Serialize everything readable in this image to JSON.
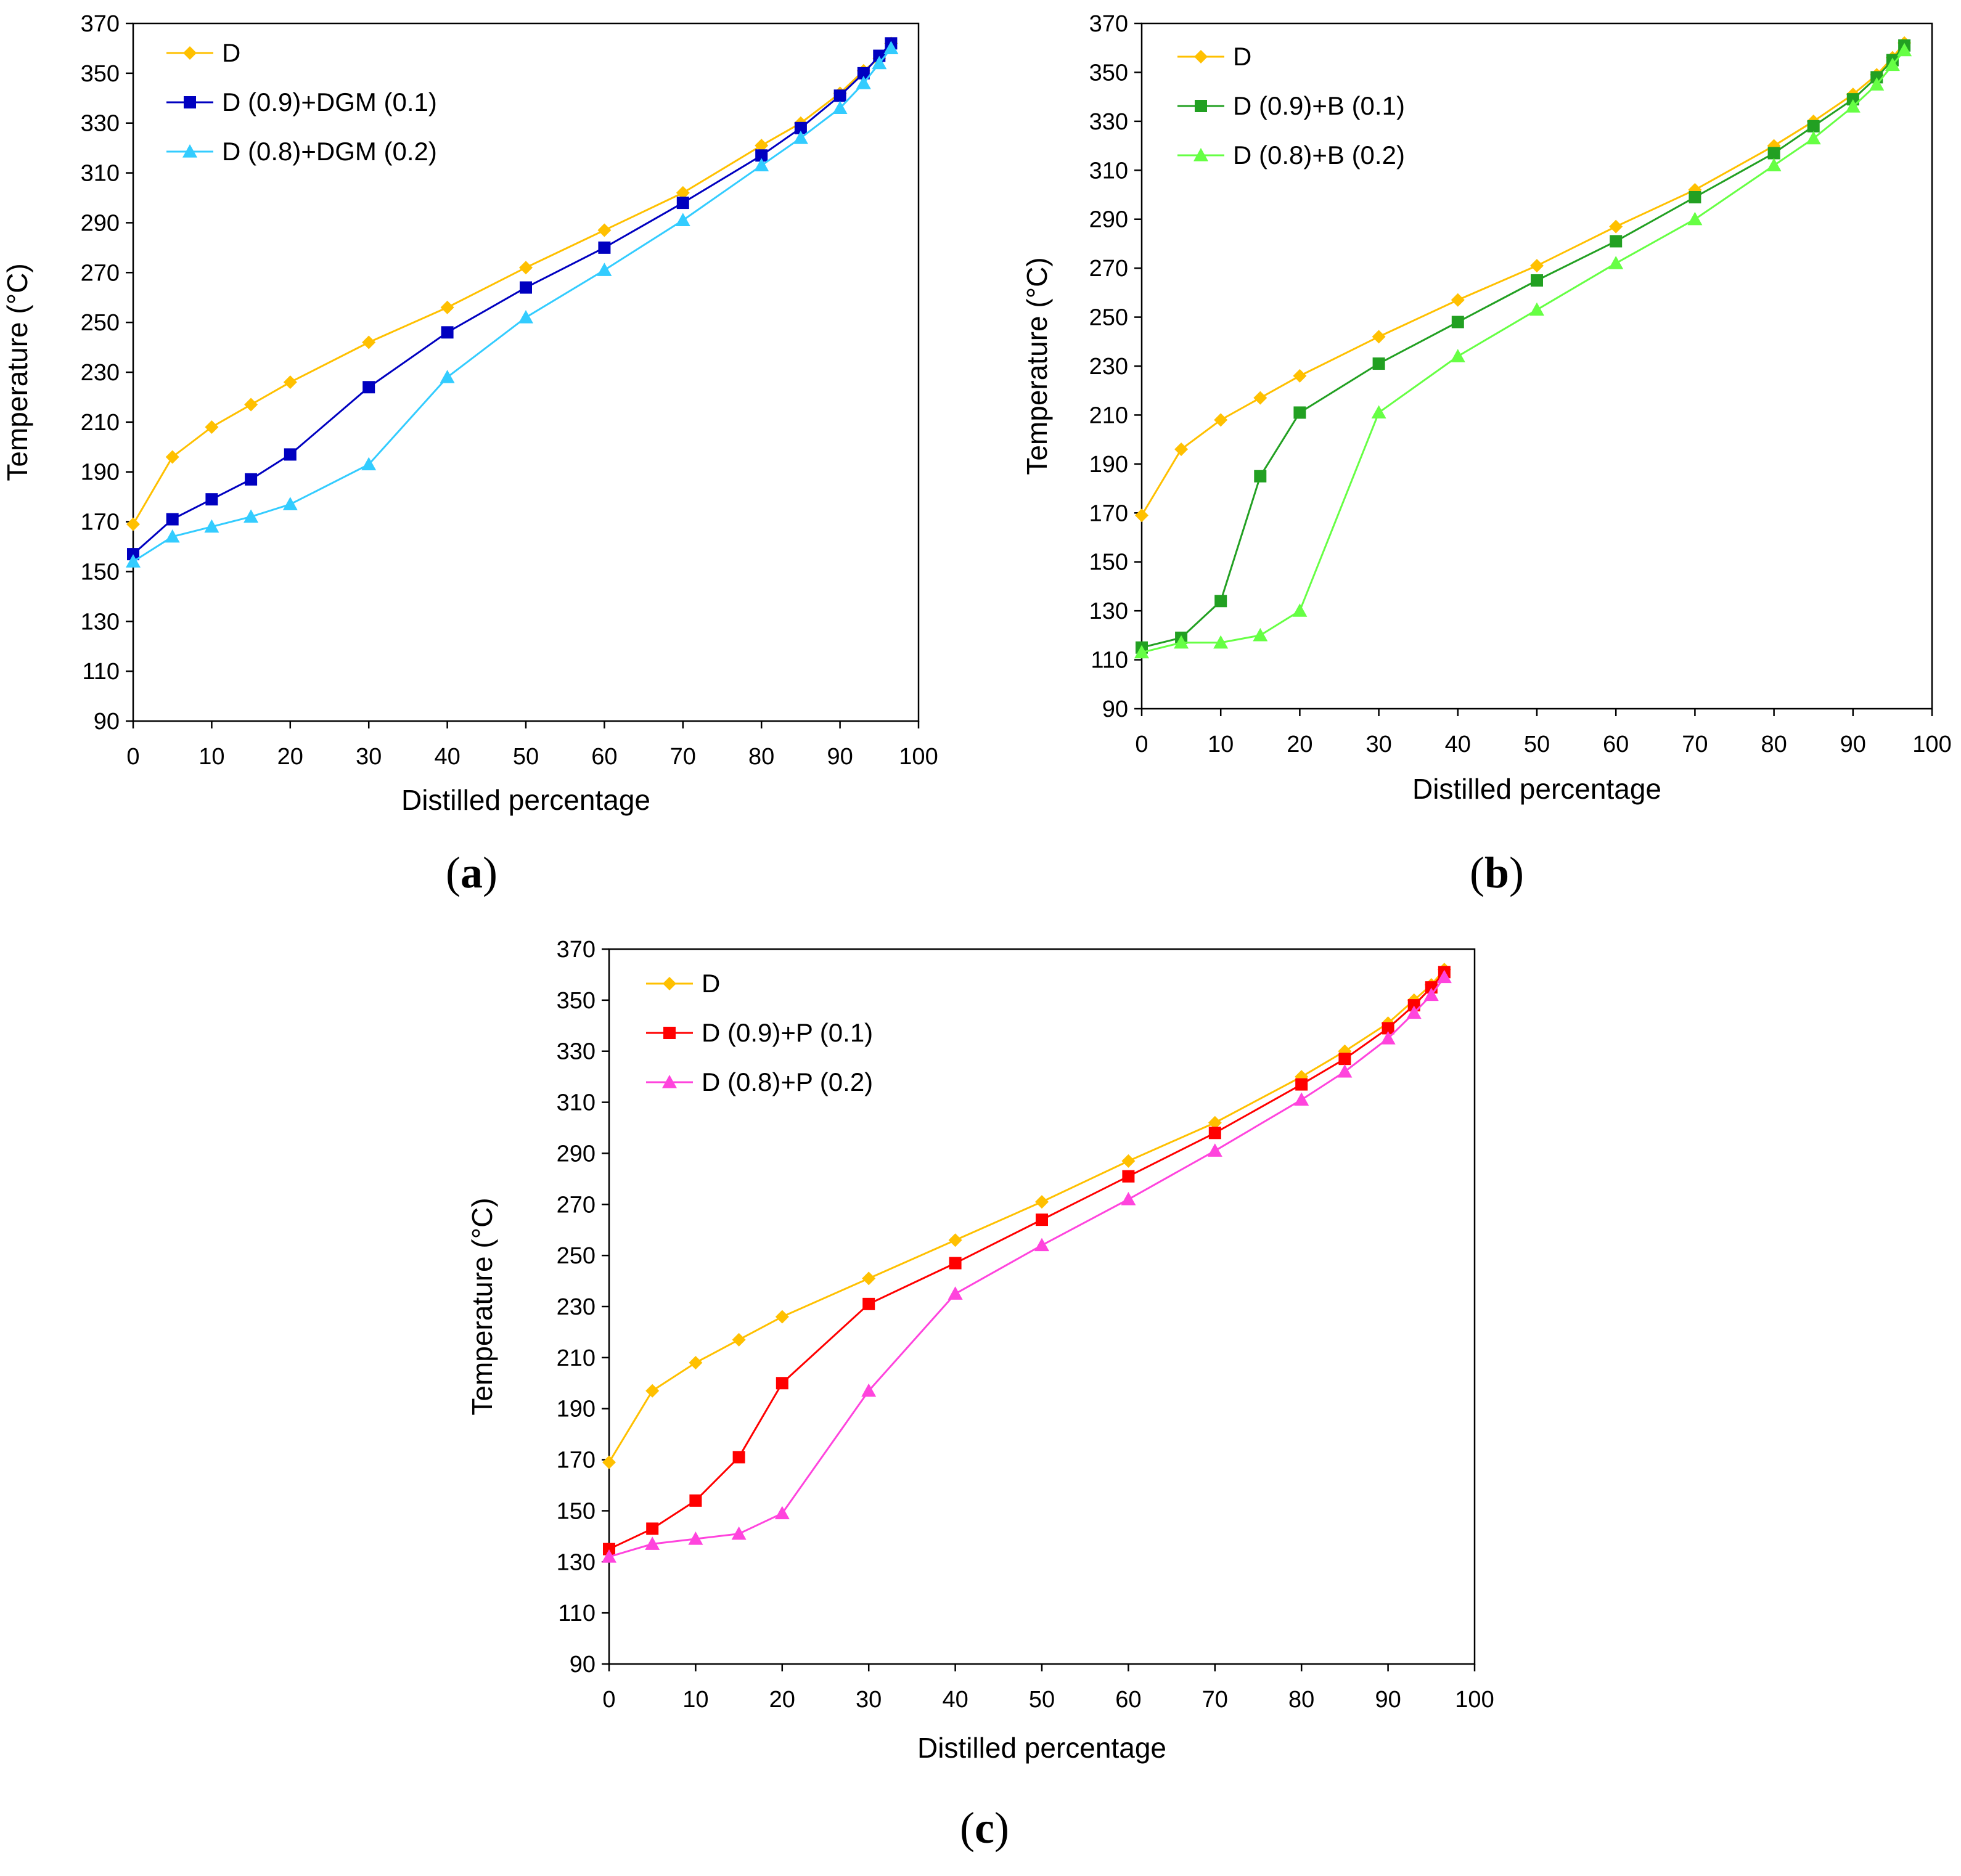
{
  "chart_data": [
    {
      "type": "line",
      "panel": "a",
      "caption_label": "a",
      "xlabel": "Distilled percentage",
      "ylabel": "Temperature (°C)",
      "xlim": [
        0,
        100
      ],
      "ylim": [
        90,
        370
      ],
      "xticks": [
        0,
        10,
        20,
        30,
        40,
        50,
        60,
        70,
        80,
        90,
        100
      ],
      "yticks": [
        90,
        110,
        130,
        150,
        170,
        190,
        210,
        230,
        250,
        270,
        290,
        310,
        330,
        350,
        370
      ],
      "legend_position": "top-left",
      "series": [
        {
          "name": "D",
          "color": "#FFC000",
          "marker": "diamond",
          "x": [
            0,
            5,
            10,
            15,
            20,
            30,
            40,
            50,
            60,
            70,
            80,
            85,
            90,
            93,
            95,
            96.5
          ],
          "y": [
            169,
            196,
            208,
            217,
            226,
            242,
            256,
            272,
            287,
            302,
            321,
            330,
            342,
            351,
            356,
            362
          ]
        },
        {
          "name": "D (0.9)+DGM (0.1)",
          "color": "#0000C0",
          "marker": "square",
          "x": [
            0,
            5,
            10,
            15,
            20,
            30,
            40,
            50,
            60,
            70,
            80,
            85,
            90,
            93,
            95,
            96.5
          ],
          "y": [
            157,
            171,
            179,
            187,
            197,
            224,
            246,
            264,
            280,
            298,
            317,
            328,
            341,
            350,
            357,
            362
          ]
        },
        {
          "name": "D (0.8)+DGM (0.2)",
          "color": "#33CCFF",
          "marker": "triangle",
          "x": [
            0,
            5,
            10,
            15,
            20,
            30,
            40,
            50,
            60,
            70,
            80,
            85,
            90,
            93,
            95,
            96.5
          ],
          "y": [
            154,
            164,
            168,
            172,
            177,
            193,
            228,
            252,
            271,
            291,
            313,
            324,
            336,
            346,
            354,
            360
          ]
        }
      ]
    },
    {
      "type": "line",
      "panel": "b",
      "caption_label": "b",
      "xlabel": "Distilled percentage",
      "ylabel": "Temperature (°C)",
      "xlim": [
        0,
        100
      ],
      "ylim": [
        90,
        370
      ],
      "xticks": [
        0,
        10,
        20,
        30,
        40,
        50,
        60,
        70,
        80,
        90,
        100
      ],
      "yticks": [
        90,
        110,
        130,
        150,
        170,
        190,
        210,
        230,
        250,
        270,
        290,
        310,
        330,
        350,
        370
      ],
      "legend_position": "top-left",
      "series": [
        {
          "name": "D",
          "color": "#FFC000",
          "marker": "diamond",
          "x": [
            0,
            5,
            10,
            15,
            20,
            30,
            40,
            50,
            60,
            70,
            80,
            85,
            90,
            93,
            95,
            96.5
          ],
          "y": [
            169,
            196,
            208,
            217,
            226,
            242,
            257,
            271,
            287,
            302,
            320,
            330,
            341,
            349,
            356,
            362
          ]
        },
        {
          "name": "D (0.9)+B (0.1)",
          "color": "#22A022",
          "marker": "square",
          "x": [
            0,
            5,
            10,
            15,
            20,
            30,
            40,
            50,
            60,
            70,
            80,
            85,
            90,
            93,
            95,
            96.5
          ],
          "y": [
            115,
            119,
            134,
            185,
            211,
            231,
            248,
            265,
            281,
            299,
            317,
            328,
            339,
            348,
            355,
            361
          ]
        },
        {
          "name": "D (0.8)+B (0.2)",
          "color": "#66FF44",
          "marker": "triangle",
          "x": [
            0,
            5,
            10,
            15,
            20,
            30,
            40,
            50,
            60,
            70,
            80,
            85,
            90,
            93,
            95,
            96.5
          ],
          "y": [
            113,
            117,
            117,
            120,
            130,
            211,
            234,
            253,
            272,
            290,
            312,
            323,
            336,
            345,
            353,
            359
          ]
        }
      ]
    },
    {
      "type": "line",
      "panel": "c",
      "caption_label": "c",
      "xlabel": "Distilled percentage",
      "ylabel": "Temperature (°C)",
      "xlim": [
        0,
        100
      ],
      "ylim": [
        90,
        370
      ],
      "xticks": [
        0,
        10,
        20,
        30,
        40,
        50,
        60,
        70,
        80,
        90,
        100
      ],
      "yticks": [
        90,
        110,
        130,
        150,
        170,
        190,
        210,
        230,
        250,
        270,
        290,
        310,
        330,
        350,
        370
      ],
      "legend_position": "top-left",
      "series": [
        {
          "name": "D",
          "color": "#FFC000",
          "marker": "diamond",
          "x": [
            0,
            5,
            10,
            15,
            20,
            30,
            40,
            50,
            60,
            70,
            80,
            85,
            90,
            93,
            95,
            96.5
          ],
          "y": [
            169,
            197,
            208,
            217,
            226,
            241,
            256,
            271,
            287,
            302,
            320,
            330,
            341,
            350,
            356,
            362
          ]
        },
        {
          "name": "D (0.9)+P (0.1)",
          "color": "#FF0000",
          "marker": "square",
          "x": [
            0,
            5,
            10,
            15,
            20,
            30,
            40,
            50,
            60,
            70,
            80,
            85,
            90,
            93,
            95,
            96.5
          ],
          "y": [
            135,
            143,
            154,
            171,
            200,
            231,
            247,
            264,
            281,
            298,
            317,
            327,
            339,
            348,
            355,
            361
          ]
        },
        {
          "name": "D (0.8)+P (0.2)",
          "color": "#FF44DD",
          "marker": "triangle",
          "x": [
            0,
            5,
            10,
            15,
            20,
            30,
            40,
            50,
            60,
            70,
            80,
            85,
            90,
            93,
            95,
            96.5
          ],
          "y": [
            132,
            137,
            139,
            141,
            149,
            197,
            235,
            254,
            272,
            291,
            311,
            322,
            335,
            345,
            352,
            359
          ]
        }
      ]
    }
  ]
}
